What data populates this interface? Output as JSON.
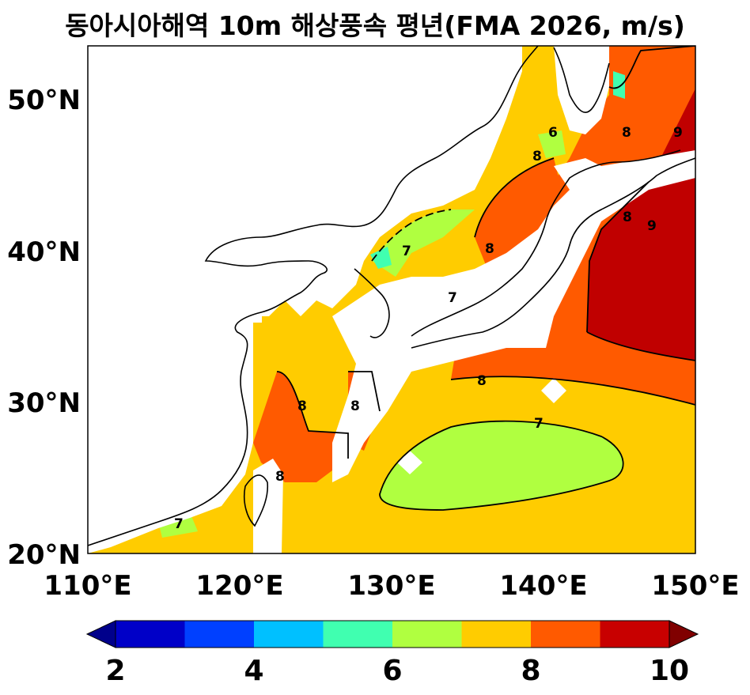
{
  "title": "동아시아해역 10m 해상풍속 평년(FMA 2026, m/s)",
  "map": {
    "type": "filled-contour-map",
    "lon_range": [
      110,
      150
    ],
    "lat_range": [
      20,
      53.5
    ],
    "x_ticks": [
      "110°E",
      "120°E",
      "130°E",
      "140°E",
      "150°E"
    ],
    "y_ticks": [
      "20°N",
      "30°N",
      "40°N",
      "50°N"
    ],
    "land_color": "#ffffff",
    "contour_labels": [
      "6",
      "7",
      "7",
      "7",
      "7",
      "8",
      "8",
      "8",
      "8",
      "8",
      "8",
      "8",
      "8",
      "9",
      "9"
    ]
  },
  "colorbar": {
    "ticks": [
      "2",
      "4",
      "6",
      "8",
      "10"
    ],
    "levels": [
      2,
      3,
      4,
      5,
      6,
      7,
      8,
      9,
      10
    ],
    "colors": [
      "#00008b",
      "#0000c8",
      "#0040ff",
      "#00c0ff",
      "#40ffb0",
      "#b0ff40",
      "#ffcc00",
      "#ff5a00",
      "#c80000",
      "#800000"
    ],
    "extend": "both"
  }
}
